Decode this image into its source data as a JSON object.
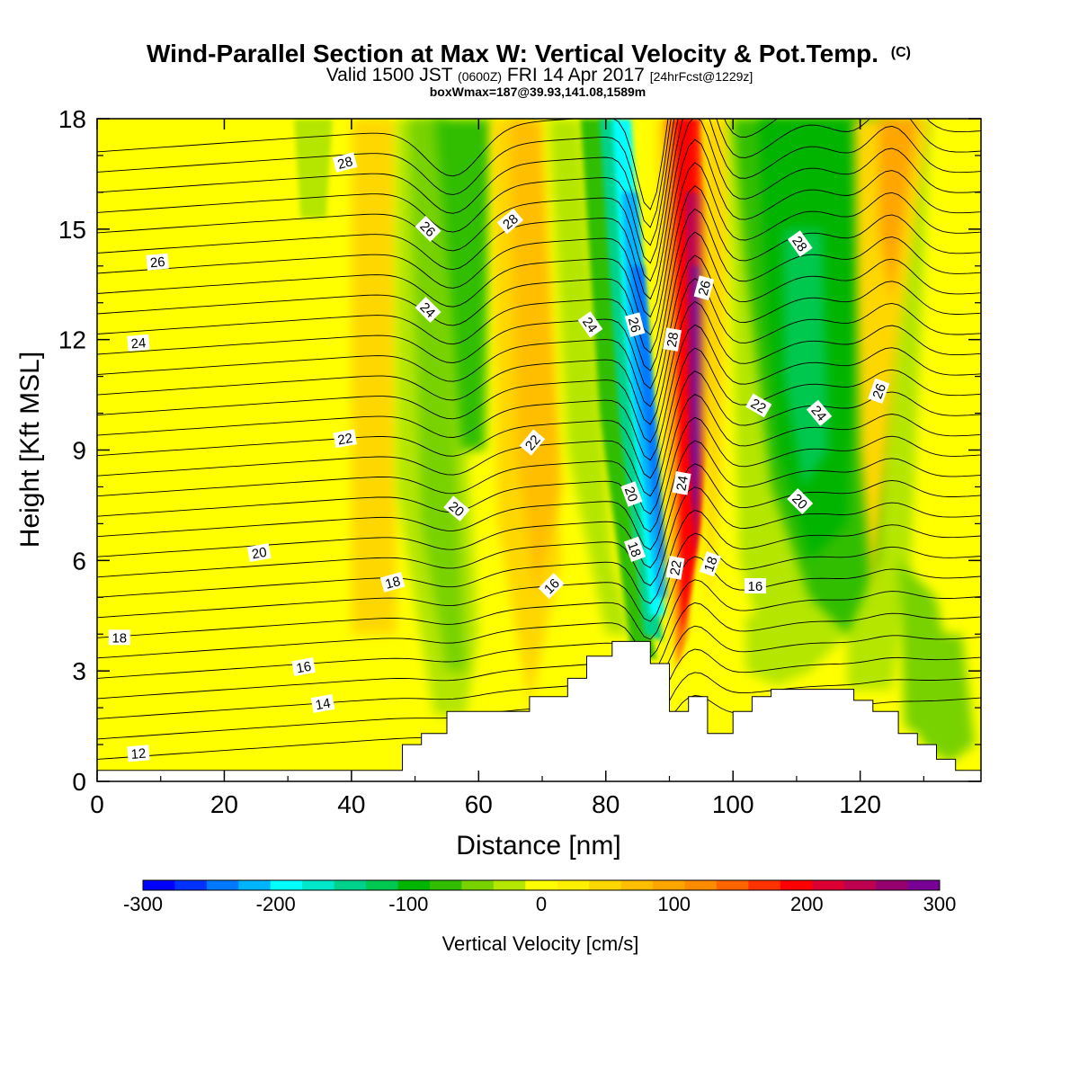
{
  "title": {
    "main": "Wind-Parallel Section at Max W: Vertical Velocity & Pot.Temp.",
    "main_tag": "(C)",
    "valid_prefix": "Valid 1500 JST",
    "valid_zulu": "(0600Z)",
    "valid_date": "FRI 14 Apr 2017",
    "valid_fcst": "[24hrFcst@1229z]",
    "subtitle": "boxWmax=187@39.93,141.08,1589m"
  },
  "chart_data": {
    "type": "heatmap",
    "xlabel": "Distance [nm]",
    "ylabel": "Height [Kft MSL]",
    "xlim": [
      0,
      139
    ],
    "ylim": [
      0,
      18
    ],
    "x_ticks": [
      "0",
      "20",
      "40",
      "60",
      "80",
      "100",
      "120"
    ],
    "y_ticks": [
      "0",
      "3",
      "6",
      "9",
      "12",
      "15",
      "18"
    ],
    "fill_variable": "Vertical Velocity [cm/s]",
    "contour_variable": "Potential temperature (C)",
    "colorbar": {
      "label": "Vertical Velocity [cm/s]",
      "range": [
        -300,
        300
      ],
      "tick_labels": [
        "-300",
        "-200",
        "-100",
        "0",
        "100",
        "200",
        "300"
      ],
      "colors": [
        "#0000ff",
        "#0032ff",
        "#0078ff",
        "#00b4ff",
        "#00ffff",
        "#00e6c8",
        "#00d28c",
        "#00c850",
        "#00b400",
        "#32be00",
        "#78d200",
        "#b4e600",
        "#ffff00",
        "#fff000",
        "#ffd700",
        "#ffbe00",
        "#ffa500",
        "#ff8c00",
        "#ff6400",
        "#ff3200",
        "#ff0000",
        "#dc0032",
        "#be0050",
        "#96006e",
        "#780096"
      ]
    },
    "terrain": [
      {
        "x": 0,
        "h": 0.3
      },
      {
        "x": 48,
        "h": 0.3
      },
      {
        "x": 48,
        "h": 1.0
      },
      {
        "x": 51,
        "h": 1.0
      },
      {
        "x": 51,
        "h": 1.3
      },
      {
        "x": 55,
        "h": 1.3
      },
      {
        "x": 55,
        "h": 1.9
      },
      {
        "x": 68,
        "h": 1.9
      },
      {
        "x": 68,
        "h": 2.3
      },
      {
        "x": 74,
        "h": 2.3
      },
      {
        "x": 74,
        "h": 2.8
      },
      {
        "x": 77,
        "h": 2.8
      },
      {
        "x": 77,
        "h": 3.4
      },
      {
        "x": 81,
        "h": 3.4
      },
      {
        "x": 81,
        "h": 3.8
      },
      {
        "x": 87,
        "h": 3.8
      },
      {
        "x": 87,
        "h": 3.2
      },
      {
        "x": 90,
        "h": 3.2
      },
      {
        "x": 90,
        "h": 1.9
      },
      {
        "x": 93,
        "h": 1.9
      },
      {
        "x": 93,
        "h": 2.3
      },
      {
        "x": 96,
        "h": 2.3
      },
      {
        "x": 96,
        "h": 1.3
      },
      {
        "x": 100,
        "h": 1.3
      },
      {
        "x": 100,
        "h": 1.9
      },
      {
        "x": 103,
        "h": 1.9
      },
      {
        "x": 103,
        "h": 2.3
      },
      {
        "x": 106,
        "h": 2.3
      },
      {
        "x": 106,
        "h": 2.5
      },
      {
        "x": 119,
        "h": 2.5
      },
      {
        "x": 119,
        "h": 2.2
      },
      {
        "x": 122,
        "h": 2.2
      },
      {
        "x": 122,
        "h": 1.9
      },
      {
        "x": 126,
        "h": 1.9
      },
      {
        "x": 126,
        "h": 1.3
      },
      {
        "x": 129,
        "h": 1.3
      },
      {
        "x": 129,
        "h": 1.0
      },
      {
        "x": 132,
        "h": 1.0
      },
      {
        "x": 132,
        "h": 0.6
      },
      {
        "x": 135,
        "h": 0.6
      },
      {
        "x": 135,
        "h": 0.3
      },
      {
        "x": 139,
        "h": 0.3
      }
    ],
    "contour_labels": [
      {
        "text": "28",
        "x": 39,
        "h": 16.8,
        "rot": -15
      },
      {
        "text": "26",
        "x": 9.5,
        "h": 14.1,
        "rot": -5
      },
      {
        "text": "26",
        "x": 52,
        "h": 15.0,
        "rot": 45
      },
      {
        "text": "28",
        "x": 65,
        "h": 15.2,
        "rot": -40
      },
      {
        "text": "24",
        "x": 6.5,
        "h": 11.9,
        "rot": -5
      },
      {
        "text": "24",
        "x": 52,
        "h": 12.8,
        "rot": 45
      },
      {
        "text": "24",
        "x": 77.5,
        "h": 12.4,
        "rot": 55
      },
      {
        "text": "26",
        "x": 84.5,
        "h": 12.4,
        "rot": 75
      },
      {
        "text": "28",
        "x": 90.5,
        "h": 12.0,
        "rot": -80
      },
      {
        "text": "26",
        "x": 95.5,
        "h": 13.4,
        "rot": -75
      },
      {
        "text": "28",
        "x": 110.5,
        "h": 14.6,
        "rot": 55
      },
      {
        "text": "22",
        "x": 39,
        "h": 9.3,
        "rot": -10
      },
      {
        "text": "22",
        "x": 68.5,
        "h": 9.2,
        "rot": -50
      },
      {
        "text": "22",
        "x": 104,
        "h": 10.2,
        "rot": 30
      },
      {
        "text": "24",
        "x": 113.5,
        "h": 10.0,
        "rot": 50
      },
      {
        "text": "26",
        "x": 123,
        "h": 10.6,
        "rot": -70
      },
      {
        "text": "20",
        "x": 25.5,
        "h": 6.2,
        "rot": -10
      },
      {
        "text": "20",
        "x": 56.5,
        "h": 7.4,
        "rot": 40
      },
      {
        "text": "20",
        "x": 84,
        "h": 7.8,
        "rot": 70
      },
      {
        "text": "24",
        "x": 92,
        "h": 8.1,
        "rot": -80
      },
      {
        "text": "20",
        "x": 110.5,
        "h": 7.6,
        "rot": 45
      },
      {
        "text": "18",
        "x": 46.5,
        "h": 5.4,
        "rot": -15
      },
      {
        "text": "18",
        "x": 84.5,
        "h": 6.3,
        "rot": 70
      },
      {
        "text": "22",
        "x": 91,
        "h": 5.8,
        "rot": -80
      },
      {
        "text": "18",
        "x": 96.5,
        "h": 5.9,
        "rot": -70
      },
      {
        "text": "16",
        "x": 71.5,
        "h": 5.3,
        "rot": -45
      },
      {
        "text": "16",
        "x": 103.5,
        "h": 5.3,
        "rot": 0
      },
      {
        "text": "18",
        "x": 3.5,
        "h": 3.9,
        "rot": 0
      },
      {
        "text": "16",
        "x": 32.5,
        "h": 3.1,
        "rot": -10
      },
      {
        "text": "14",
        "x": 35.5,
        "h": 2.1,
        "rot": -10
      },
      {
        "text": "12",
        "x": 6.5,
        "h": 0.75,
        "rot": -5
      }
    ]
  }
}
